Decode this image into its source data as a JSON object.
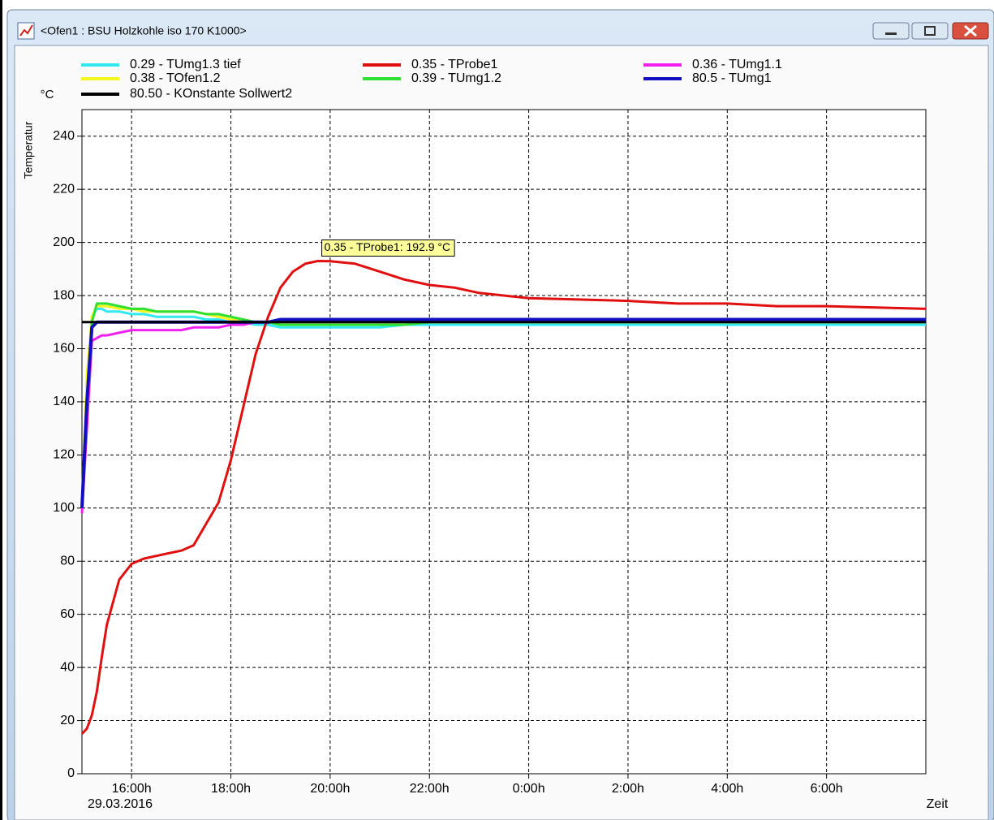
{
  "window": {
    "title": "<Ofen1 : BSU Holzkohle iso 170 K1000>"
  },
  "chart_data": {
    "type": "line",
    "y_unit": "°C",
    "y_label": "Temperatur",
    "x_label": "Zeit",
    "x_date_label": "29.03.2016",
    "annotation": "0.35 - TProbe1: 192.9 °C",
    "grid": true,
    "xlim": [
      15,
      32
    ],
    "xticks": [
      {
        "value": 16,
        "label": "16:00h"
      },
      {
        "value": 18,
        "label": "18:00h"
      },
      {
        "value": 20,
        "label": "20:00h"
      },
      {
        "value": 22,
        "label": "22:00h"
      },
      {
        "value": 24,
        "label": "0:00h"
      },
      {
        "value": 26,
        "label": "2:00h"
      },
      {
        "value": 28,
        "label": "4:00h"
      },
      {
        "value": 30,
        "label": "6:00h"
      }
    ],
    "ylim": [
      0,
      250
    ],
    "yticks": [
      0,
      20,
      40,
      60,
      80,
      100,
      120,
      140,
      160,
      180,
      200,
      220,
      240
    ],
    "x": [
      15,
      15.1,
      15.2,
      15.3,
      15.4,
      15.5,
      15.75,
      16,
      16.25,
      16.5,
      16.75,
      17,
      17.25,
      17.5,
      17.75,
      18,
      18.25,
      18.5,
      18.75,
      19,
      19.25,
      19.5,
      19.75,
      20,
      20.5,
      21,
      21.5,
      22,
      22.5,
      23,
      24,
      25,
      26,
      27,
      28,
      29,
      30,
      31,
      32
    ],
    "series": [
      {
        "name": "0.29 - TUmg1.3 tief",
        "color": "#33e8f0",
        "values": [
          100,
          145,
          172,
          175,
          175,
          174,
          174,
          173,
          173,
          172,
          172,
          172,
          172,
          171,
          171,
          170,
          170,
          169,
          169,
          168,
          168,
          168,
          168,
          168,
          168,
          168,
          169,
          169,
          169,
          169,
          169,
          169,
          169,
          169,
          169,
          169,
          169,
          169,
          169
        ]
      },
      {
        "name": "0.35 - TProbe1",
        "color": "#e01010",
        "values": [
          15,
          17,
          22,
          31,
          44,
          56,
          73,
          79,
          81,
          82,
          83,
          84,
          86,
          94,
          102,
          118,
          138,
          158,
          172,
          183,
          189,
          192,
          193,
          192.9,
          192,
          189,
          186,
          184,
          183,
          181,
          179,
          178.5,
          178,
          177,
          177,
          176,
          176,
          175.5,
          175
        ]
      },
      {
        "name": "0.36 - TUmg1.1",
        "color": "#f020f0",
        "values": [
          98,
          130,
          163,
          164,
          165,
          165,
          166,
          167,
          167,
          167,
          167,
          167,
          168,
          168,
          168,
          169,
          169,
          170,
          170,
          170,
          171,
          171,
          171,
          171,
          171,
          171,
          171,
          171,
          171,
          171,
          171,
          171,
          171,
          171,
          171,
          171,
          171,
          171,
          171
        ]
      },
      {
        "name": "0.38 - TOfen1.2",
        "color": "#f5f520",
        "values": [
          100,
          150,
          172,
          176,
          176,
          176,
          175,
          175,
          174,
          174,
          174,
          174,
          174,
          173,
          172,
          171,
          171,
          170,
          170,
          170,
          170,
          170,
          170,
          170,
          170,
          170,
          170,
          170,
          170,
          170,
          170,
          170,
          170,
          170,
          170,
          170,
          170,
          170,
          170
        ]
      },
      {
        "name": "0.39 - TUmg1.2",
        "color": "#30e030",
        "values": [
          100,
          140,
          170,
          177,
          177,
          177,
          176,
          175,
          175,
          174,
          174,
          174,
          174,
          173,
          173,
          172,
          171,
          170,
          170,
          169,
          169,
          169,
          169,
          169,
          169,
          169,
          169,
          170,
          170,
          170,
          170,
          170,
          170,
          170,
          170,
          170,
          170,
          170,
          170
        ]
      },
      {
        "name": "80.5 - TUmg1",
        "color": "#1010c0",
        "values": [
          100,
          140,
          168,
          170,
          170,
          170,
          170,
          170,
          170,
          170,
          170,
          170,
          170,
          170,
          170,
          170,
          170,
          170,
          170,
          171,
          171,
          171,
          171,
          171,
          171,
          171,
          171,
          171,
          171,
          171,
          171,
          171,
          171,
          171,
          171,
          171,
          171,
          171,
          171
        ]
      },
      {
        "name": "80.50 - KOnstante Sollwert2",
        "color": "#000000",
        "values": [
          170,
          170,
          170,
          170,
          170,
          170,
          170,
          170,
          170,
          170,
          170,
          170,
          170,
          170,
          170,
          170,
          170,
          170,
          170,
          170,
          170,
          170,
          170,
          170,
          170,
          170,
          170,
          170,
          170,
          170,
          170,
          170,
          170,
          170,
          170,
          170,
          170,
          170,
          170
        ]
      }
    ]
  }
}
